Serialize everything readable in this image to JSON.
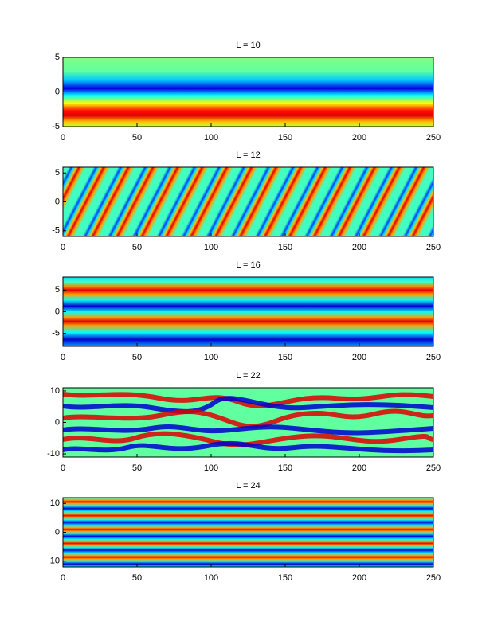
{
  "chart_data": [
    {
      "type": "heatmap",
      "title": "L = 10",
      "xlim": [
        0,
        250
      ],
      "xticks": [
        0,
        50,
        100,
        150,
        200,
        250
      ],
      "ylim": [
        -5,
        5
      ],
      "yticks": [
        -5,
        0,
        5
      ]
    },
    {
      "type": "heatmap",
      "title": "L = 12",
      "xlim": [
        0,
        250
      ],
      "xticks": [
        0,
        50,
        100,
        150,
        200,
        250
      ],
      "ylim": [
        -6,
        6
      ],
      "yticks": [
        -5,
        0,
        5
      ]
    },
    {
      "type": "heatmap",
      "title": "L = 16",
      "xlim": [
        0,
        250
      ],
      "xticks": [
        0,
        50,
        100,
        150,
        200,
        250
      ],
      "ylim": [
        -8,
        8
      ],
      "yticks": [
        -5,
        0,
        5
      ]
    },
    {
      "type": "heatmap",
      "title": "L = 22",
      "xlim": [
        0,
        250
      ],
      "xticks": [
        0,
        50,
        100,
        150,
        200,
        250
      ],
      "ylim": [
        -11,
        11
      ],
      "yticks": [
        -10,
        0,
        10
      ]
    },
    {
      "type": "heatmap",
      "title": "L = 24",
      "xlim": [
        0,
        250
      ],
      "xticks": [
        0,
        50,
        100,
        150,
        200,
        250
      ],
      "ylim": [
        -12,
        12
      ],
      "yticks": [
        -10,
        0,
        10
      ]
    }
  ]
}
